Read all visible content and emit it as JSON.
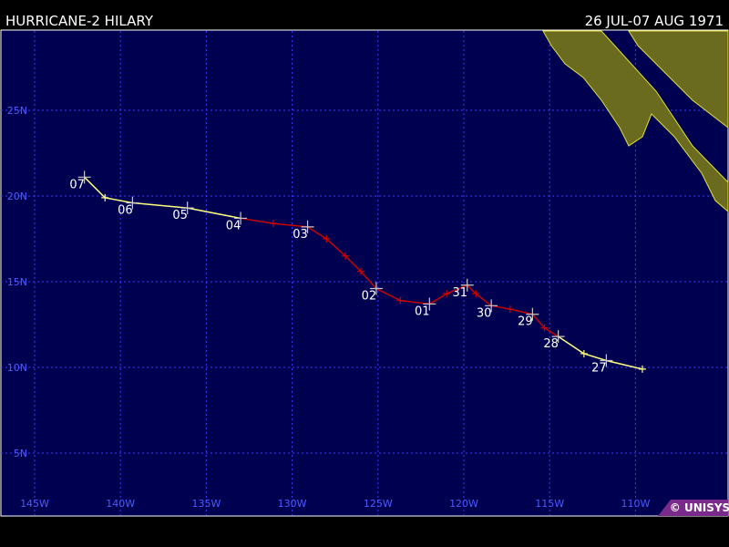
{
  "header": {
    "title": "HURRICANE-2 HILARY",
    "dates": "26 JUL-07 AUG 1971"
  },
  "credit": "© UNISYS",
  "map": {
    "lon_ticks": [
      {
        "value": -145,
        "label": "145W"
      },
      {
        "value": -140,
        "label": "140W"
      },
      {
        "value": -135,
        "label": "135W"
      },
      {
        "value": -130,
        "label": "130W"
      },
      {
        "value": -125,
        "label": "125W"
      },
      {
        "value": -120,
        "label": "120W"
      },
      {
        "value": -115,
        "label": "115W"
      },
      {
        "value": -110,
        "label": "110W"
      }
    ],
    "lat_ticks": [
      {
        "value": 25,
        "label": "25N"
      },
      {
        "value": 20,
        "label": "20N"
      },
      {
        "value": 15,
        "label": "15N"
      },
      {
        "value": 10,
        "label": "10N"
      },
      {
        "value": 5,
        "label": "5N"
      }
    ],
    "grid": true
  },
  "track": {
    "points": [
      {
        "lon": -142.1,
        "lat": 21.1,
        "label": "07",
        "color": "#ffff80"
      },
      {
        "lon": -140.9,
        "lat": 19.9,
        "color": "#ffff80"
      },
      {
        "lon": -139.3,
        "lat": 19.6,
        "label": "06",
        "color": "#ffff80"
      },
      {
        "lon": -136.1,
        "lat": 19.3,
        "label": "05",
        "color": "#ffff80"
      },
      {
        "lon": -133.0,
        "lat": 18.7,
        "label": "04",
        "color": "#cc0000"
      },
      {
        "lon": -131.1,
        "lat": 18.4,
        "color": "#cc0000"
      },
      {
        "lon": -129.1,
        "lat": 18.2,
        "label": "03",
        "color": "#cc0000"
      },
      {
        "lon": -128.0,
        "lat": 17.5,
        "color": "#cc0000"
      },
      {
        "lon": -126.9,
        "lat": 16.5,
        "color": "#cc0000"
      },
      {
        "lon": -126.0,
        "lat": 15.6,
        "color": "#cc0000"
      },
      {
        "lon": -125.1,
        "lat": 14.6,
        "label": "02",
        "color": "#cc0000"
      },
      {
        "lon": -123.7,
        "lat": 13.9,
        "color": "#cc0000"
      },
      {
        "lon": -122.0,
        "lat": 13.7,
        "label": "01",
        "color": "#cc0000"
      },
      {
        "lon": -121.0,
        "lat": 14.3,
        "color": "#cc0000"
      },
      {
        "lon": -119.8,
        "lat": 14.8,
        "label": "31",
        "color": "#cc0000"
      },
      {
        "lon": -119.3,
        "lat": 14.3,
        "color": "#cc0000"
      },
      {
        "lon": -118.4,
        "lat": 13.6,
        "label": "30",
        "color": "#cc0000"
      },
      {
        "lon": -117.3,
        "lat": 13.4,
        "color": "#cc0000"
      },
      {
        "lon": -116.0,
        "lat": 13.1,
        "label": "29",
        "color": "#cc0000"
      },
      {
        "lon": -115.3,
        "lat": 12.3,
        "color": "#cc0000"
      },
      {
        "lon": -114.5,
        "lat": 11.8,
        "label": "28",
        "color": "#ffff80"
      },
      {
        "lon": -113.0,
        "lat": 10.8,
        "color": "#ffff80"
      },
      {
        "lon": -111.7,
        "lat": 10.4,
        "label": "27",
        "color": "#ffff80"
      },
      {
        "lon": -109.6,
        "lat": 9.9,
        "color": "#ffff80"
      }
    ]
  }
}
